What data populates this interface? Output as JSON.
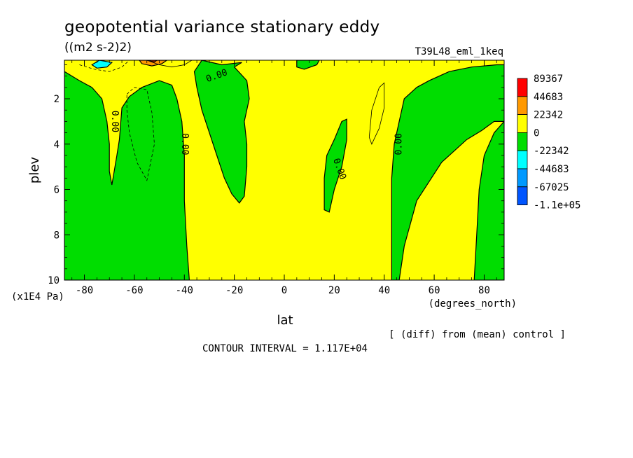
{
  "header": {
    "title": "geopotential variance stationary eddy",
    "units": "((m2 s-2)2)",
    "experiment": "T39L48_eml_1keq"
  },
  "footer": {
    "contour_interval": "CONTOUR INTERVAL = 1.117E+04",
    "diff_note": "[ (diff) from (mean) control ]"
  },
  "chart_data": {
    "type": "heatmap",
    "title": "geopotential variance stationary eddy",
    "xlabel": "lat",
    "xunits": "(degrees_north)",
    "ylabel": "plev",
    "yunits": "(x1E4 Pa)",
    "xlim": [
      -88,
      88
    ],
    "ylim": [
      10,
      0.3
    ],
    "xticks": [
      "-80",
      "-60",
      "-40",
      "-20",
      "0",
      "20",
      "40",
      "60",
      "80"
    ],
    "xtick_values": [
      -80,
      -60,
      -40,
      -20,
      0,
      20,
      40,
      60,
      80
    ],
    "yticks": [
      "2",
      "4",
      "6",
      "8",
      "10"
    ],
    "ytick_values": [
      2,
      4,
      6,
      8,
      10
    ],
    "contour_label": "0.00",
    "legend": [
      {
        "label": "89367",
        "color": "#ff0000"
      },
      {
        "label": "44683",
        "color": "#ff9900"
      },
      {
        "label": "22342",
        "color": "#ffff00"
      },
      {
        "label": "0",
        "color": "#00dd00"
      },
      {
        "label": "-22342",
        "color": "#00ffff"
      },
      {
        "label": "-44683",
        "color": "#0099ff"
      },
      {
        "label": "-67025",
        "color": "#0055ff"
      },
      {
        "label": "-1.1e+05",
        "color": null
      }
    ],
    "background_color": "#ffff00",
    "regions": [
      {
        "name": "green-region-sh-polar",
        "fill": "#00dd00",
        "points": [
          [
            -88,
            0.3
          ],
          [
            -88,
            0.8
          ],
          [
            -82,
            1.2
          ],
          [
            -77,
            1.5
          ],
          [
            -73,
            2.0
          ],
          [
            -71,
            3.0
          ],
          [
            -70,
            4.0
          ],
          [
            -70,
            5.2
          ],
          [
            -69,
            5.8
          ],
          [
            -67,
            4.5
          ],
          [
            -66,
            3.8
          ],
          [
            -65,
            2.4
          ],
          [
            -62,
            1.9
          ],
          [
            -57,
            1.5
          ],
          [
            -50,
            1.2
          ],
          [
            -45,
            1.4
          ],
          [
            -43,
            2.0
          ],
          [
            -41,
            3.0
          ],
          [
            -40,
            4.5
          ],
          [
            -40,
            6.5
          ],
          [
            -39,
            8.5
          ],
          [
            -38,
            10
          ],
          [
            -88,
            10
          ]
        ]
      },
      {
        "name": "green-region-sh-midlat",
        "fill": "#00dd00",
        "points": [
          [
            -36,
            0.8
          ],
          [
            -33,
            0.3
          ],
          [
            -25,
            0.5
          ],
          [
            -17,
            0.4
          ],
          [
            -20,
            0.6
          ],
          [
            -15,
            1.2
          ],
          [
            -14,
            2.0
          ],
          [
            -16,
            3.0
          ],
          [
            -15,
            4.0
          ],
          [
            -15,
            5.0
          ],
          [
            -16,
            6.3
          ],
          [
            -18,
            6.6
          ],
          [
            -21,
            6.2
          ],
          [
            -24,
            5.5
          ],
          [
            -27,
            4.5
          ],
          [
            -30,
            3.5
          ],
          [
            -33,
            2.5
          ],
          [
            -35,
            1.5
          ]
        ]
      },
      {
        "name": "green-region-tropics-top",
        "fill": "#00dd00",
        "points": [
          [
            5,
            0.3
          ],
          [
            14,
            0.3
          ],
          [
            13,
            0.5
          ],
          [
            8,
            0.7
          ],
          [
            5,
            0.6
          ]
        ]
      },
      {
        "name": "green-region-nh-subtropics",
        "fill": "#00dd00",
        "points": [
          [
            16,
            6.9
          ],
          [
            16,
            5.5
          ],
          [
            17,
            4.5
          ],
          [
            20,
            3.8
          ],
          [
            23,
            3.0
          ],
          [
            25,
            2.9
          ],
          [
            25,
            3.8
          ],
          [
            23,
            5.0
          ],
          [
            20,
            6.0
          ],
          [
            18,
            7.0
          ]
        ]
      },
      {
        "name": "green-region-nh-polar",
        "fill": "#00dd00",
        "points": [
          [
            43,
            10
          ],
          [
            43,
            8.0
          ],
          [
            43,
            5.5
          ],
          [
            44,
            4.0
          ],
          [
            46,
            3.0
          ],
          [
            48,
            2.0
          ],
          [
            53,
            1.5
          ],
          [
            58,
            1.2
          ],
          [
            66,
            0.8
          ],
          [
            75,
            0.6
          ],
          [
            85,
            0.5
          ],
          [
            88,
            0.5
          ],
          [
            88,
            10
          ],
          [
            76,
            10
          ],
          [
            77,
            8.0
          ],
          [
            78,
            6.0
          ],
          [
            80,
            4.5
          ],
          [
            84,
            3.5
          ],
          [
            88,
            3.0
          ],
          [
            84,
            3.0
          ],
          [
            79,
            3.4
          ],
          [
            73,
            3.8
          ],
          [
            63,
            4.8
          ],
          [
            53,
            6.5
          ],
          [
            48,
            8.5
          ],
          [
            46,
            10
          ]
        ]
      },
      {
        "name": "cyan-region-sh-top",
        "fill": "#00ffff",
        "points": [
          [
            -77,
            0.5
          ],
          [
            -74,
            0.3
          ],
          [
            -69,
            0.4
          ],
          [
            -71,
            0.6
          ],
          [
            -75,
            0.65
          ]
        ]
      },
      {
        "name": "orange-region-sh-top",
        "fill": "#ff9900",
        "points": [
          [
            -58,
            0.3
          ],
          [
            -47,
            0.3
          ],
          [
            -49,
            0.45
          ],
          [
            -53,
            0.55
          ],
          [
            -57,
            0.45
          ]
        ]
      },
      {
        "name": "red-region-sh-top",
        "fill": "#dd2200",
        "points": [
          [
            -55,
            0.3
          ],
          [
            -51,
            0.3
          ],
          [
            -52,
            0.38
          ]
        ]
      }
    ],
    "dashed_contours": [
      {
        "name": "negative-contour-sh-1",
        "points": [
          [
            -63,
            1.8
          ],
          [
            -60,
            1.5
          ],
          [
            -55,
            1.6
          ],
          [
            -53,
            2.6
          ],
          [
            -52,
            4.0
          ],
          [
            -55,
            5.6
          ],
          [
            -59,
            4.8
          ],
          [
            -62,
            3.5
          ],
          [
            -63,
            2.5
          ],
          [
            -63,
            1.8
          ]
        ]
      },
      {
        "name": "negative-contour-sh-top",
        "points": [
          [
            -82,
            0.5
          ],
          [
            -76,
            0.7
          ],
          [
            -70,
            0.8
          ],
          [
            -65,
            0.6
          ],
          [
            -62,
            0.3
          ]
        ]
      }
    ],
    "solid_contours": [
      {
        "name": "positive-contour-nh-1",
        "points": [
          [
            34,
            3.7
          ],
          [
            35,
            2.5
          ],
          [
            38,
            1.5
          ],
          [
            40,
            1.3
          ],
          [
            40,
            2.4
          ],
          [
            38,
            3.3
          ],
          [
            35,
            4.0
          ],
          [
            34,
            3.7
          ]
        ]
      },
      {
        "name": "positive-contour-sh-top",
        "points": [
          [
            -55,
            0.3
          ],
          [
            -50,
            0.5
          ],
          [
            -45,
            0.6
          ],
          [
            -40,
            0.5
          ],
          [
            -37,
            0.3
          ]
        ]
      }
    ],
    "contour_labels": [
      {
        "text": "0.00",
        "lat": -68,
        "plev": 3.0,
        "rotate": 90
      },
      {
        "text": "0.00",
        "lat": -40,
        "plev": 4.0,
        "rotate": 90
      },
      {
        "text": "0.00",
        "lat": -27,
        "plev": 1.0,
        "rotate": -20
      },
      {
        "text": "0.00",
        "lat": 22,
        "plev": 5.1,
        "rotate": 70
      },
      {
        "text": "0.00",
        "lat": 46,
        "plev": 4.0,
        "rotate": -90
      }
    ]
  }
}
